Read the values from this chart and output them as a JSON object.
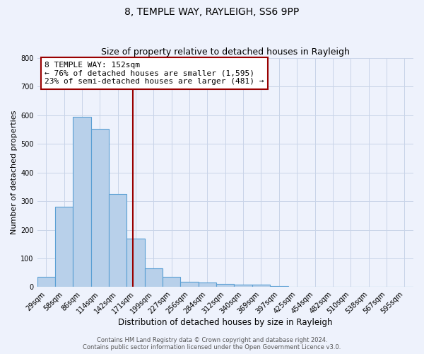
{
  "title": "8, TEMPLE WAY, RAYLEIGH, SS6 9PP",
  "subtitle": "Size of property relative to detached houses in Rayleigh",
  "xlabel": "Distribution of detached houses by size in Rayleigh",
  "ylabel": "Number of detached properties",
  "bin_labels": [
    "29sqm",
    "58sqm",
    "86sqm",
    "114sqm",
    "142sqm",
    "171sqm",
    "199sqm",
    "227sqm",
    "256sqm",
    "284sqm",
    "312sqm",
    "340sqm",
    "369sqm",
    "397sqm",
    "425sqm",
    "454sqm",
    "482sqm",
    "510sqm",
    "538sqm",
    "567sqm",
    "595sqm"
  ],
  "bin_values": [
    37,
    280,
    595,
    552,
    325,
    170,
    65,
    37,
    18,
    17,
    10,
    8,
    8,
    3,
    2,
    2,
    1,
    1,
    1,
    0,
    1
  ],
  "bar_color": "#b8d0ea",
  "bar_edgecolor": "#5a9fd4",
  "bar_linewidth": 0.8,
  "vline_color": "#990000",
  "annotation_line1": "8 TEMPLE WAY: 152sqm",
  "annotation_line2": "← 76% of detached houses are smaller (1,595)",
  "annotation_line3": "23% of semi-detached houses are larger (481) →",
  "annotation_box_edgecolor": "#990000",
  "annotation_box_facecolor": "white",
  "ylim": [
    0,
    800
  ],
  "yticks": [
    0,
    100,
    200,
    300,
    400,
    500,
    600,
    700,
    800
  ],
  "grid_color": "#c8d4e8",
  "background_color": "#eef2fc",
  "footer_line1": "Contains HM Land Registry data © Crown copyright and database right 2024.",
  "footer_line2": "Contains public sector information licensed under the Open Government Licence v3.0.",
  "title_fontsize": 10,
  "subtitle_fontsize": 9,
  "xlabel_fontsize": 8.5,
  "ylabel_fontsize": 8,
  "tick_fontsize": 7,
  "annotation_fontsize": 8,
  "footer_fontsize": 6
}
